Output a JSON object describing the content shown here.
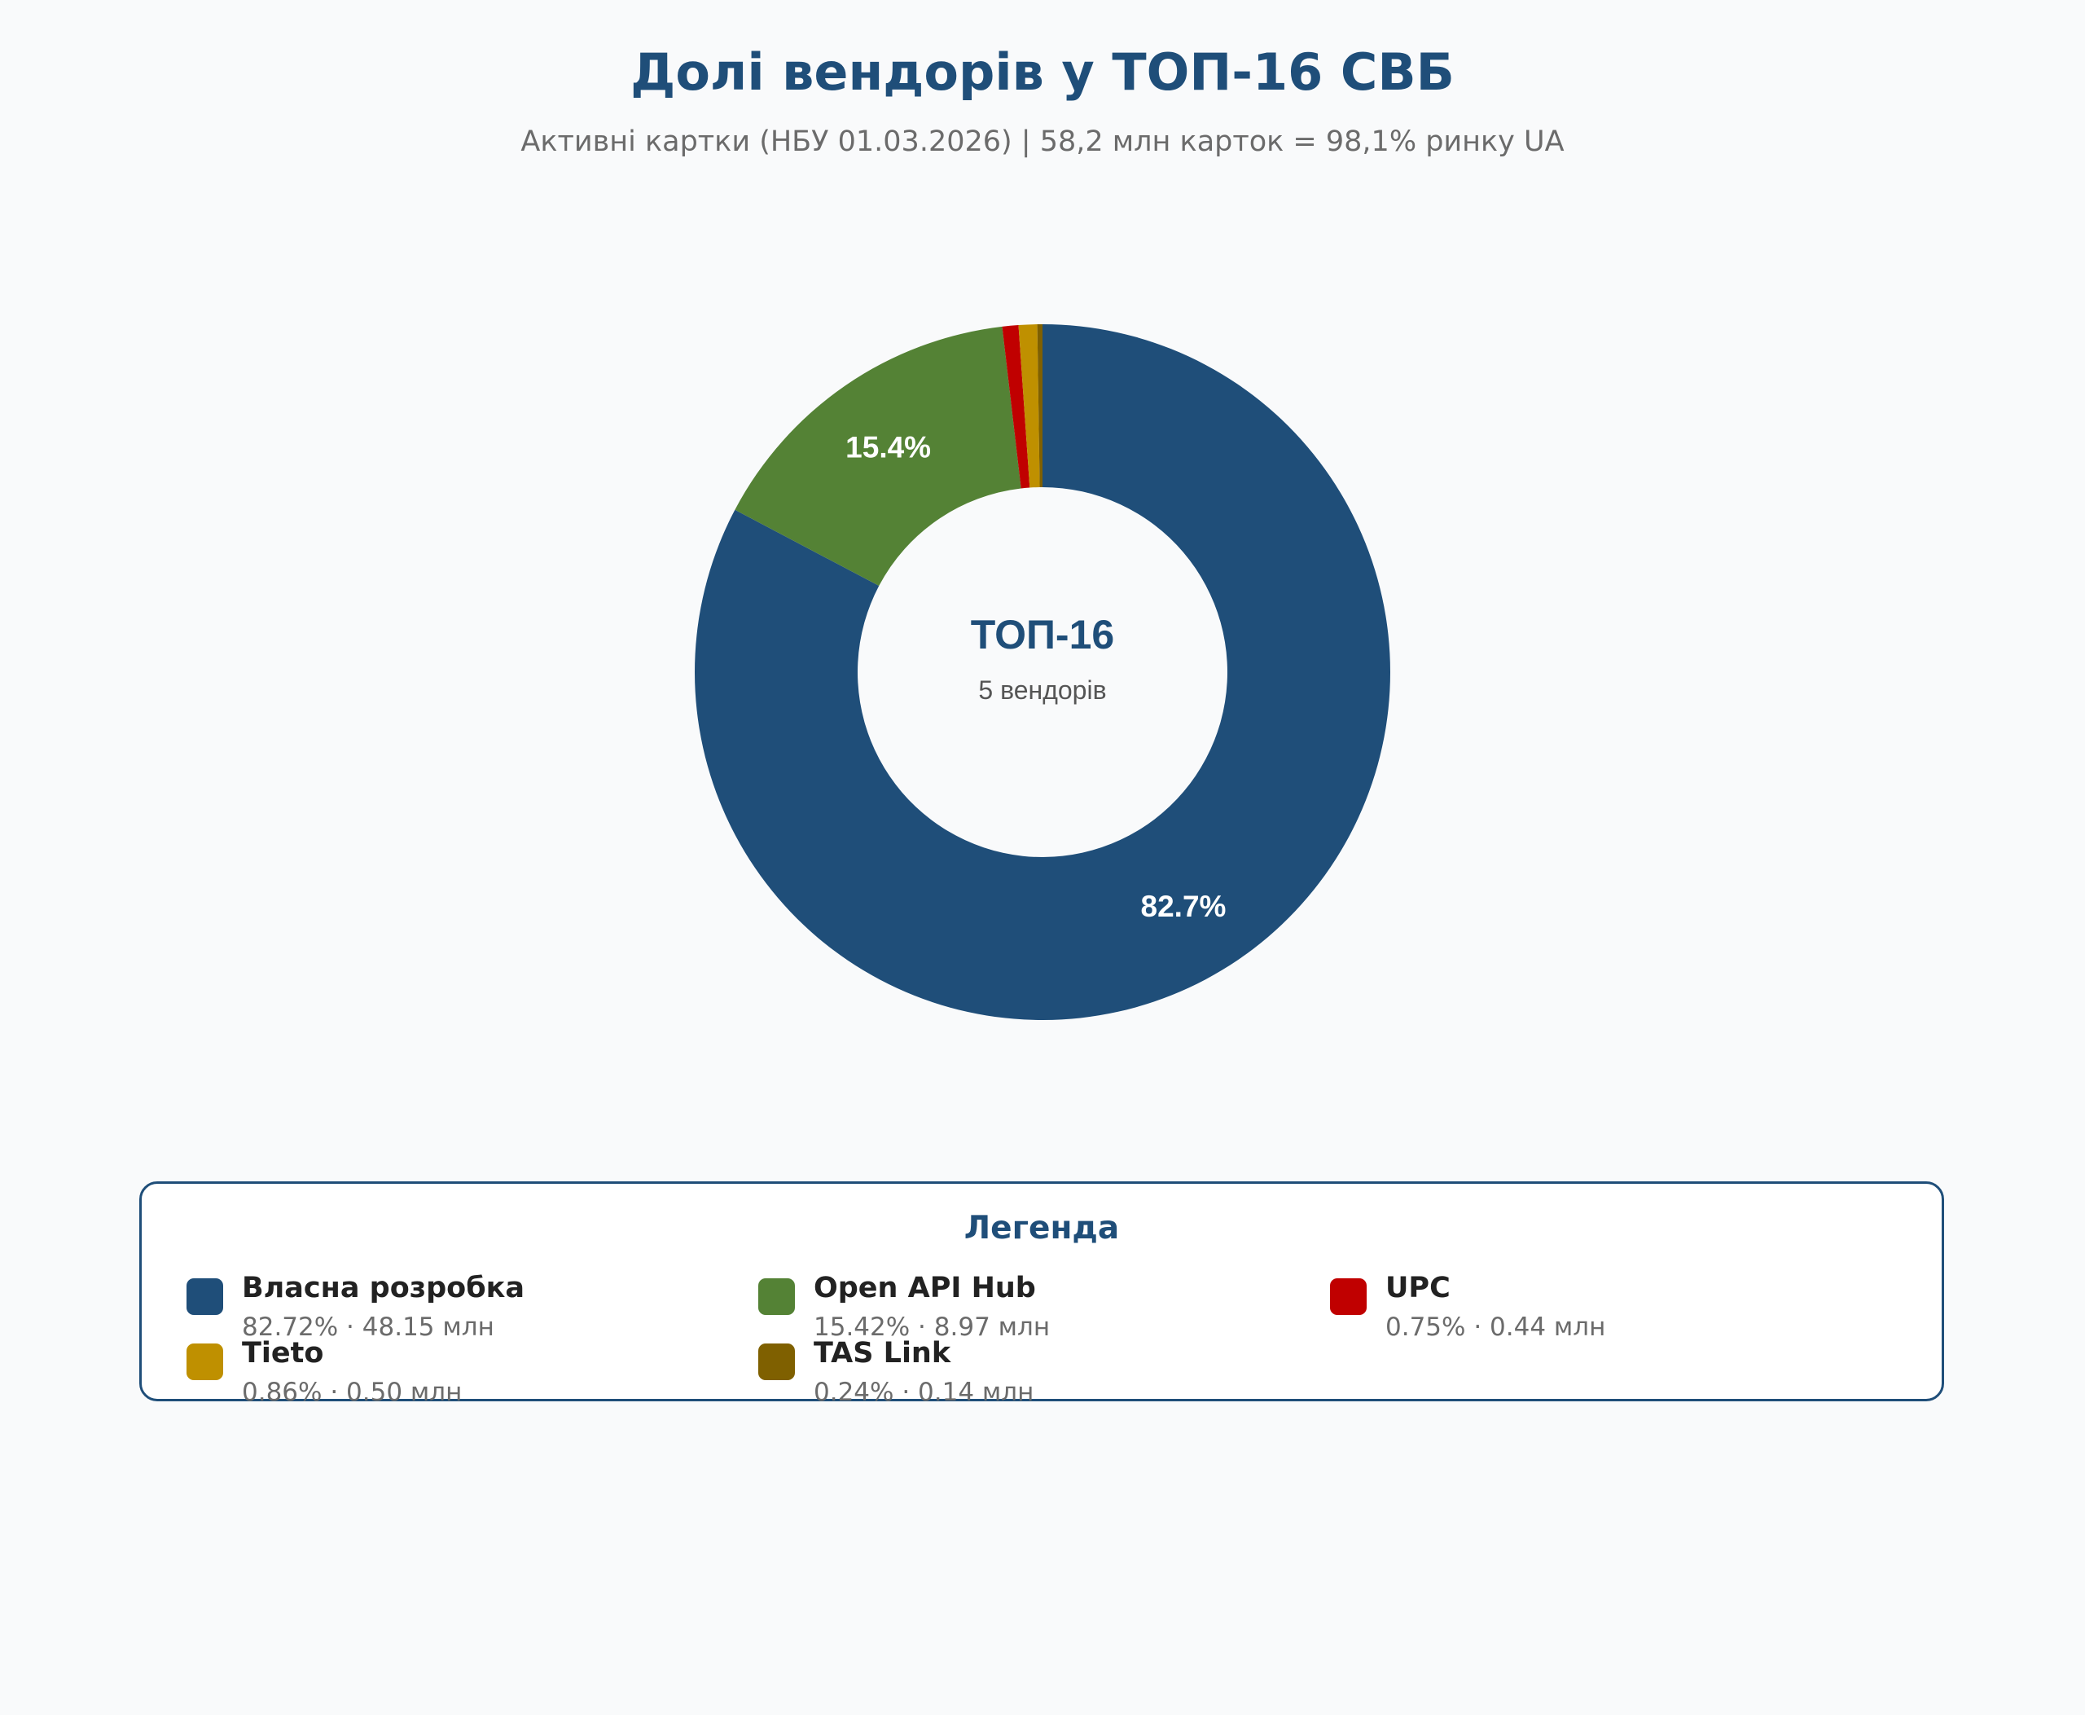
{
  "title": "Долі вендорів у ТОП-16 СВБ",
  "subtitle": "Активні картки (НБУ 01.03.2026) | 58,2 млн карток = 98,1% ринку UA",
  "center": {
    "title": "ТОП-16",
    "subtitle": "5 вендорів"
  },
  "legend": {
    "title": "Легенда",
    "items": [
      {
        "name": "Власна розробка",
        "detail": "82.72% · 48.15 млн",
        "color": "#1f4e79"
      },
      {
        "name": "Open API Hub",
        "detail": "15.42% · 8.97 млн",
        "color": "#548235"
      },
      {
        "name": "UPC",
        "detail": "0.75% · 0.44 млн",
        "color": "#c00000"
      },
      {
        "name": "Tieto",
        "detail": "0.86% · 0.50 млн",
        "color": "#bf9000"
      },
      {
        "name": "TAS Link",
        "detail": "0.24% · 0.14 млн",
        "color": "#7f6000"
      }
    ]
  },
  "chart_data": {
    "type": "pie",
    "hole": true,
    "categories": [
      "Власна розробка",
      "Open API Hub",
      "UPC",
      "Tieto",
      "TAS Link"
    ],
    "values": [
      82.72,
      15.42,
      0.75,
      0.86,
      0.24
    ],
    "units": "%",
    "counts_mln": [
      48.15,
      8.97,
      0.44,
      0.5,
      0.14
    ],
    "data_labels": [
      "82.7%",
      "15.4%",
      "",
      "",
      ""
    ],
    "colors": [
      "#1f4e79",
      "#548235",
      "#c00000",
      "#bf9000",
      "#7f6000"
    ],
    "legend_position": "bottom"
  }
}
